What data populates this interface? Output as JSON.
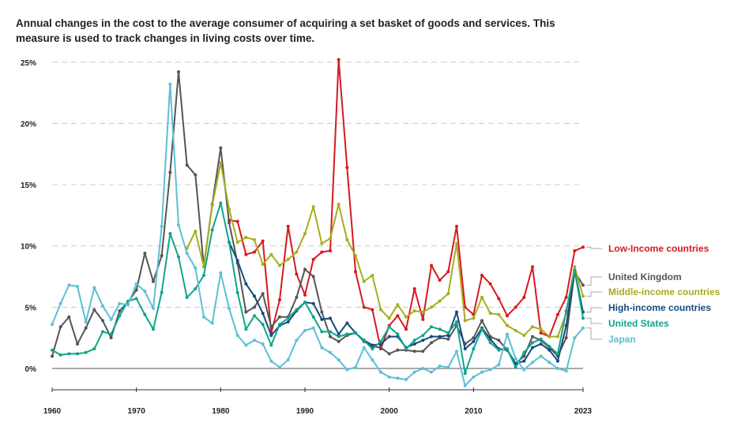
{
  "chart_data": {
    "type": "line",
    "subtitle": "Annual changes in the cost to the average consumer of acquiring a set basket of goods and services. This measure is used to track changes in living costs over time.",
    "x_start": 1960,
    "x_end": 2023,
    "x_ticks": [
      "1960",
      "1970",
      "1980",
      "1990",
      "2000",
      "2010",
      "2023"
    ],
    "x_tick_values": [
      1960,
      1970,
      1980,
      1990,
      2000,
      2010,
      2023
    ],
    "y_ticks": [
      "0%",
      "5%",
      "10%",
      "15%",
      "20%",
      "25%"
    ],
    "y_tick_values": [
      0,
      5,
      10,
      15,
      20,
      25
    ],
    "ylim": [
      -1.5,
      25.5
    ],
    "grid": "horizontal dashed",
    "legend": "right, labels at line ends",
    "series": [
      {
        "name": "Low-Income countries",
        "color": "#d7191f",
        "start": 1981,
        "values": [
          12.1,
          12.0,
          9.3,
          9.5,
          10.4,
          2.9,
          5.6,
          11.6,
          7.7,
          6.0,
          8.9,
          9.5,
          9.6,
          25.2,
          16.4,
          7.9,
          5.0,
          4.8,
          1.6,
          3.5,
          4.3,
          3.2,
          6.5,
          4.0,
          8.4,
          7.2,
          7.9,
          11.6,
          5.0,
          4.4,
          7.6,
          6.9,
          5.7,
          4.3,
          5.0,
          5.8,
          8.3,
          2.9,
          2.6,
          4.4,
          5.8,
          9.6,
          9.9
        ]
      },
      {
        "name": "United Kingdom",
        "color": "#555555",
        "start": 1960,
        "values": [
          1.0,
          3.4,
          4.2,
          2.0,
          3.3,
          4.8,
          3.9,
          2.5,
          4.7,
          5.4,
          6.4,
          9.4,
          7.1,
          9.2,
          16.0,
          24.2,
          16.6,
          15.8,
          8.3,
          13.4,
          18.0,
          11.9,
          8.6,
          4.6,
          5.0,
          6.1,
          3.4,
          4.2,
          4.2,
          5.8,
          8.1,
          7.5,
          4.6,
          2.6,
          2.2,
          2.7,
          2.9,
          2.2,
          1.8,
          1.7,
          1.2,
          1.5,
          1.5,
          1.4,
          1.4,
          2.1,
          2.5,
          2.4,
          3.5,
          2.0,
          2.5,
          3.9,
          2.6,
          2.3,
          1.5,
          0.4,
          1.0,
          2.6,
          2.3,
          1.7,
          1.0,
          2.5,
          7.9,
          6.8
        ]
      },
      {
        "name": "Middle-income countries",
        "color": "#a6ad1c",
        "start": 1976,
        "values": [
          9.8,
          11.2,
          8.3,
          13.3,
          16.8,
          13.0,
          10.3,
          10.7,
          10.5,
          8.5,
          9.3,
          8.4,
          8.9,
          9.5,
          11.0,
          13.2,
          10.2,
          10.6,
          13.4,
          10.5,
          9.2,
          7.1,
          7.6,
          4.8,
          4.1,
          5.2,
          4.2,
          4.7,
          4.6,
          5.0,
          5.5,
          6.1,
          10.2,
          3.9,
          4.1,
          5.8,
          4.5,
          4.4,
          3.5,
          3.1,
          2.7,
          3.4,
          3.2,
          2.6,
          2.6,
          4.5,
          8.3,
          5.9
        ]
      },
      {
        "name": "High-income countries",
        "color": "#174a7c",
        "start": 1981,
        "values": [
          10.3,
          8.8,
          6.9,
          5.9,
          4.5,
          2.7,
          3.5,
          3.8,
          4.7,
          5.4,
          5.3,
          4.0,
          4.1,
          2.8,
          3.7,
          2.9,
          2.3,
          1.9,
          2.0,
          2.6,
          2.6,
          1.7,
          2.0,
          2.3,
          2.6,
          2.6,
          2.7,
          4.6,
          1.6,
          2.2,
          3.3,
          2.4,
          1.6,
          1.5,
          0.4,
          0.6,
          1.7,
          2.0,
          1.5,
          0.6,
          3.5,
          8.0,
          4.6
        ]
      },
      {
        "name": "United States",
        "color": "#0fa58a",
        "start": 1960,
        "values": [
          1.5,
          1.1,
          1.2,
          1.2,
          1.3,
          1.6,
          3.0,
          2.8,
          4.3,
          5.5,
          5.7,
          4.4,
          3.2,
          6.2,
          11.0,
          9.1,
          5.8,
          6.5,
          7.6,
          11.3,
          13.5,
          10.3,
          6.2,
          3.2,
          4.3,
          3.6,
          1.9,
          3.6,
          4.1,
          4.8,
          5.4,
          4.2,
          3.0,
          3.0,
          2.6,
          2.8,
          2.9,
          2.3,
          1.6,
          2.2,
          3.4,
          2.8,
          1.6,
          2.3,
          2.7,
          3.4,
          3.2,
          2.9,
          3.8,
          -0.4,
          1.6,
          3.2,
          2.1,
          1.5,
          1.6,
          0.1,
          1.3,
          2.1,
          2.4,
          1.8,
          1.2,
          4.7,
          8.0,
          4.1
        ]
      },
      {
        "name": "Japan",
        "color": "#5bc0d5",
        "start": 1960,
        "values": [
          3.6,
          5.3,
          6.8,
          6.7,
          3.8,
          6.6,
          5.1,
          4.0,
          5.3,
          5.2,
          6.9,
          6.3,
          4.9,
          11.6,
          23.2,
          11.7,
          9.4,
          8.2,
          4.2,
          3.7,
          7.8,
          4.9,
          2.7,
          1.9,
          2.3,
          2.0,
          0.6,
          0.1,
          0.7,
          2.3,
          3.1,
          3.3,
          1.7,
          1.3,
          0.7,
          -0.1,
          0.1,
          1.7,
          0.7,
          -0.3,
          -0.7,
          -0.8,
          -0.9,
          -0.3,
          0.0,
          -0.3,
          0.2,
          0.1,
          1.4,
          -1.4,
          -0.7,
          -0.3,
          -0.1,
          0.3,
          2.8,
          0.8,
          -0.1,
          0.5,
          1.0,
          0.5,
          0.0,
          -0.2,
          2.5,
          3.3
        ]
      }
    ]
  }
}
